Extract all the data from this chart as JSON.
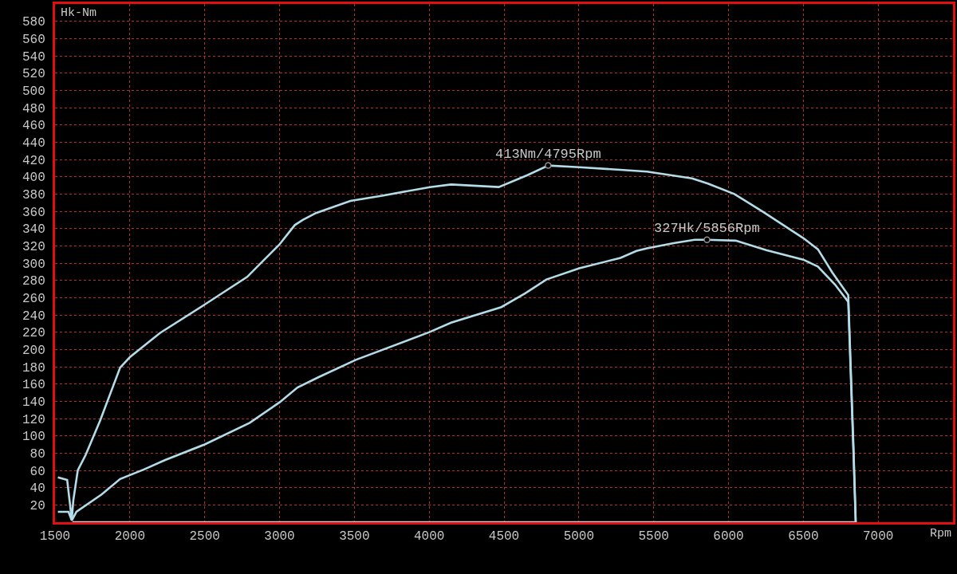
{
  "chart_data": {
    "type": "line",
    "xlabel": "Rpm",
    "ylabel": "Hk-Nm",
    "xlim": [
      1500,
      7500
    ],
    "xticks": [
      1500,
      2000,
      2500,
      3000,
      3500,
      4000,
      4500,
      5000,
      5500,
      6000,
      6500,
      7000
    ],
    "ylim": [
      0,
      600
    ],
    "yticks": [
      20,
      40,
      60,
      80,
      100,
      120,
      140,
      160,
      180,
      200,
      220,
      240,
      260,
      280,
      300,
      320,
      340,
      360,
      380,
      400,
      420,
      440,
      460,
      480,
      500,
      520,
      540,
      560,
      580
    ],
    "grid": true,
    "series": [
      {
        "color": "#b4dbe8",
        "x": [
          1519,
          1581,
          1612,
          1622,
          1652,
          1705,
          1802,
          1935,
          2000,
          2201,
          2500,
          2784,
          2864,
          2997,
          3102,
          3155,
          3244,
          3474,
          3686,
          4005,
          4146,
          4465,
          4659,
          4795,
          5003,
          5278,
          5455,
          5756,
          5862,
          6039,
          6234,
          6499,
          6597,
          6694,
          6800,
          6835,
          6850
        ],
        "values": [
          52,
          49,
          3,
          25,
          60,
          78,
          118,
          179,
          191,
          219,
          252,
          284,
          298,
          321,
          344,
          350,
          358,
          372,
          378,
          388,
          391,
          388,
          402,
          413,
          411,
          408,
          406,
          398,
          392,
          380,
          359,
          329,
          316,
          289,
          263,
          87,
          0
        ]
      },
      {
        "color": "#b4dbe8",
        "x": [
          1519,
          1590,
          1612,
          1643,
          1811,
          1935,
          2094,
          2236,
          2500,
          2801,
          3002,
          3120,
          3262,
          3510,
          4001,
          4146,
          4482,
          4642,
          4783,
          5003,
          5278,
          5385,
          5455,
          5633,
          5774,
          5856,
          6048,
          6252,
          6499,
          6597,
          6712,
          6800,
          6835,
          6850,
          1616
        ],
        "values": [
          12,
          12,
          2,
          12,
          32,
          50,
          61,
          72,
          90,
          115,
          139,
          156,
          168,
          188,
          220,
          231,
          249,
          265,
          281,
          294,
          306,
          314,
          317,
          323,
          327,
          327,
          326,
          315,
          304,
          296,
          275,
          255,
          80,
          0,
          0
        ]
      }
    ],
    "annotations": [
      {
        "text": "413Nm/4795Rpm",
        "x": 4795,
        "y": 413
      },
      {
        "text": "327Hk/5856Rpm",
        "x": 5856,
        "y": 327
      }
    ]
  }
}
